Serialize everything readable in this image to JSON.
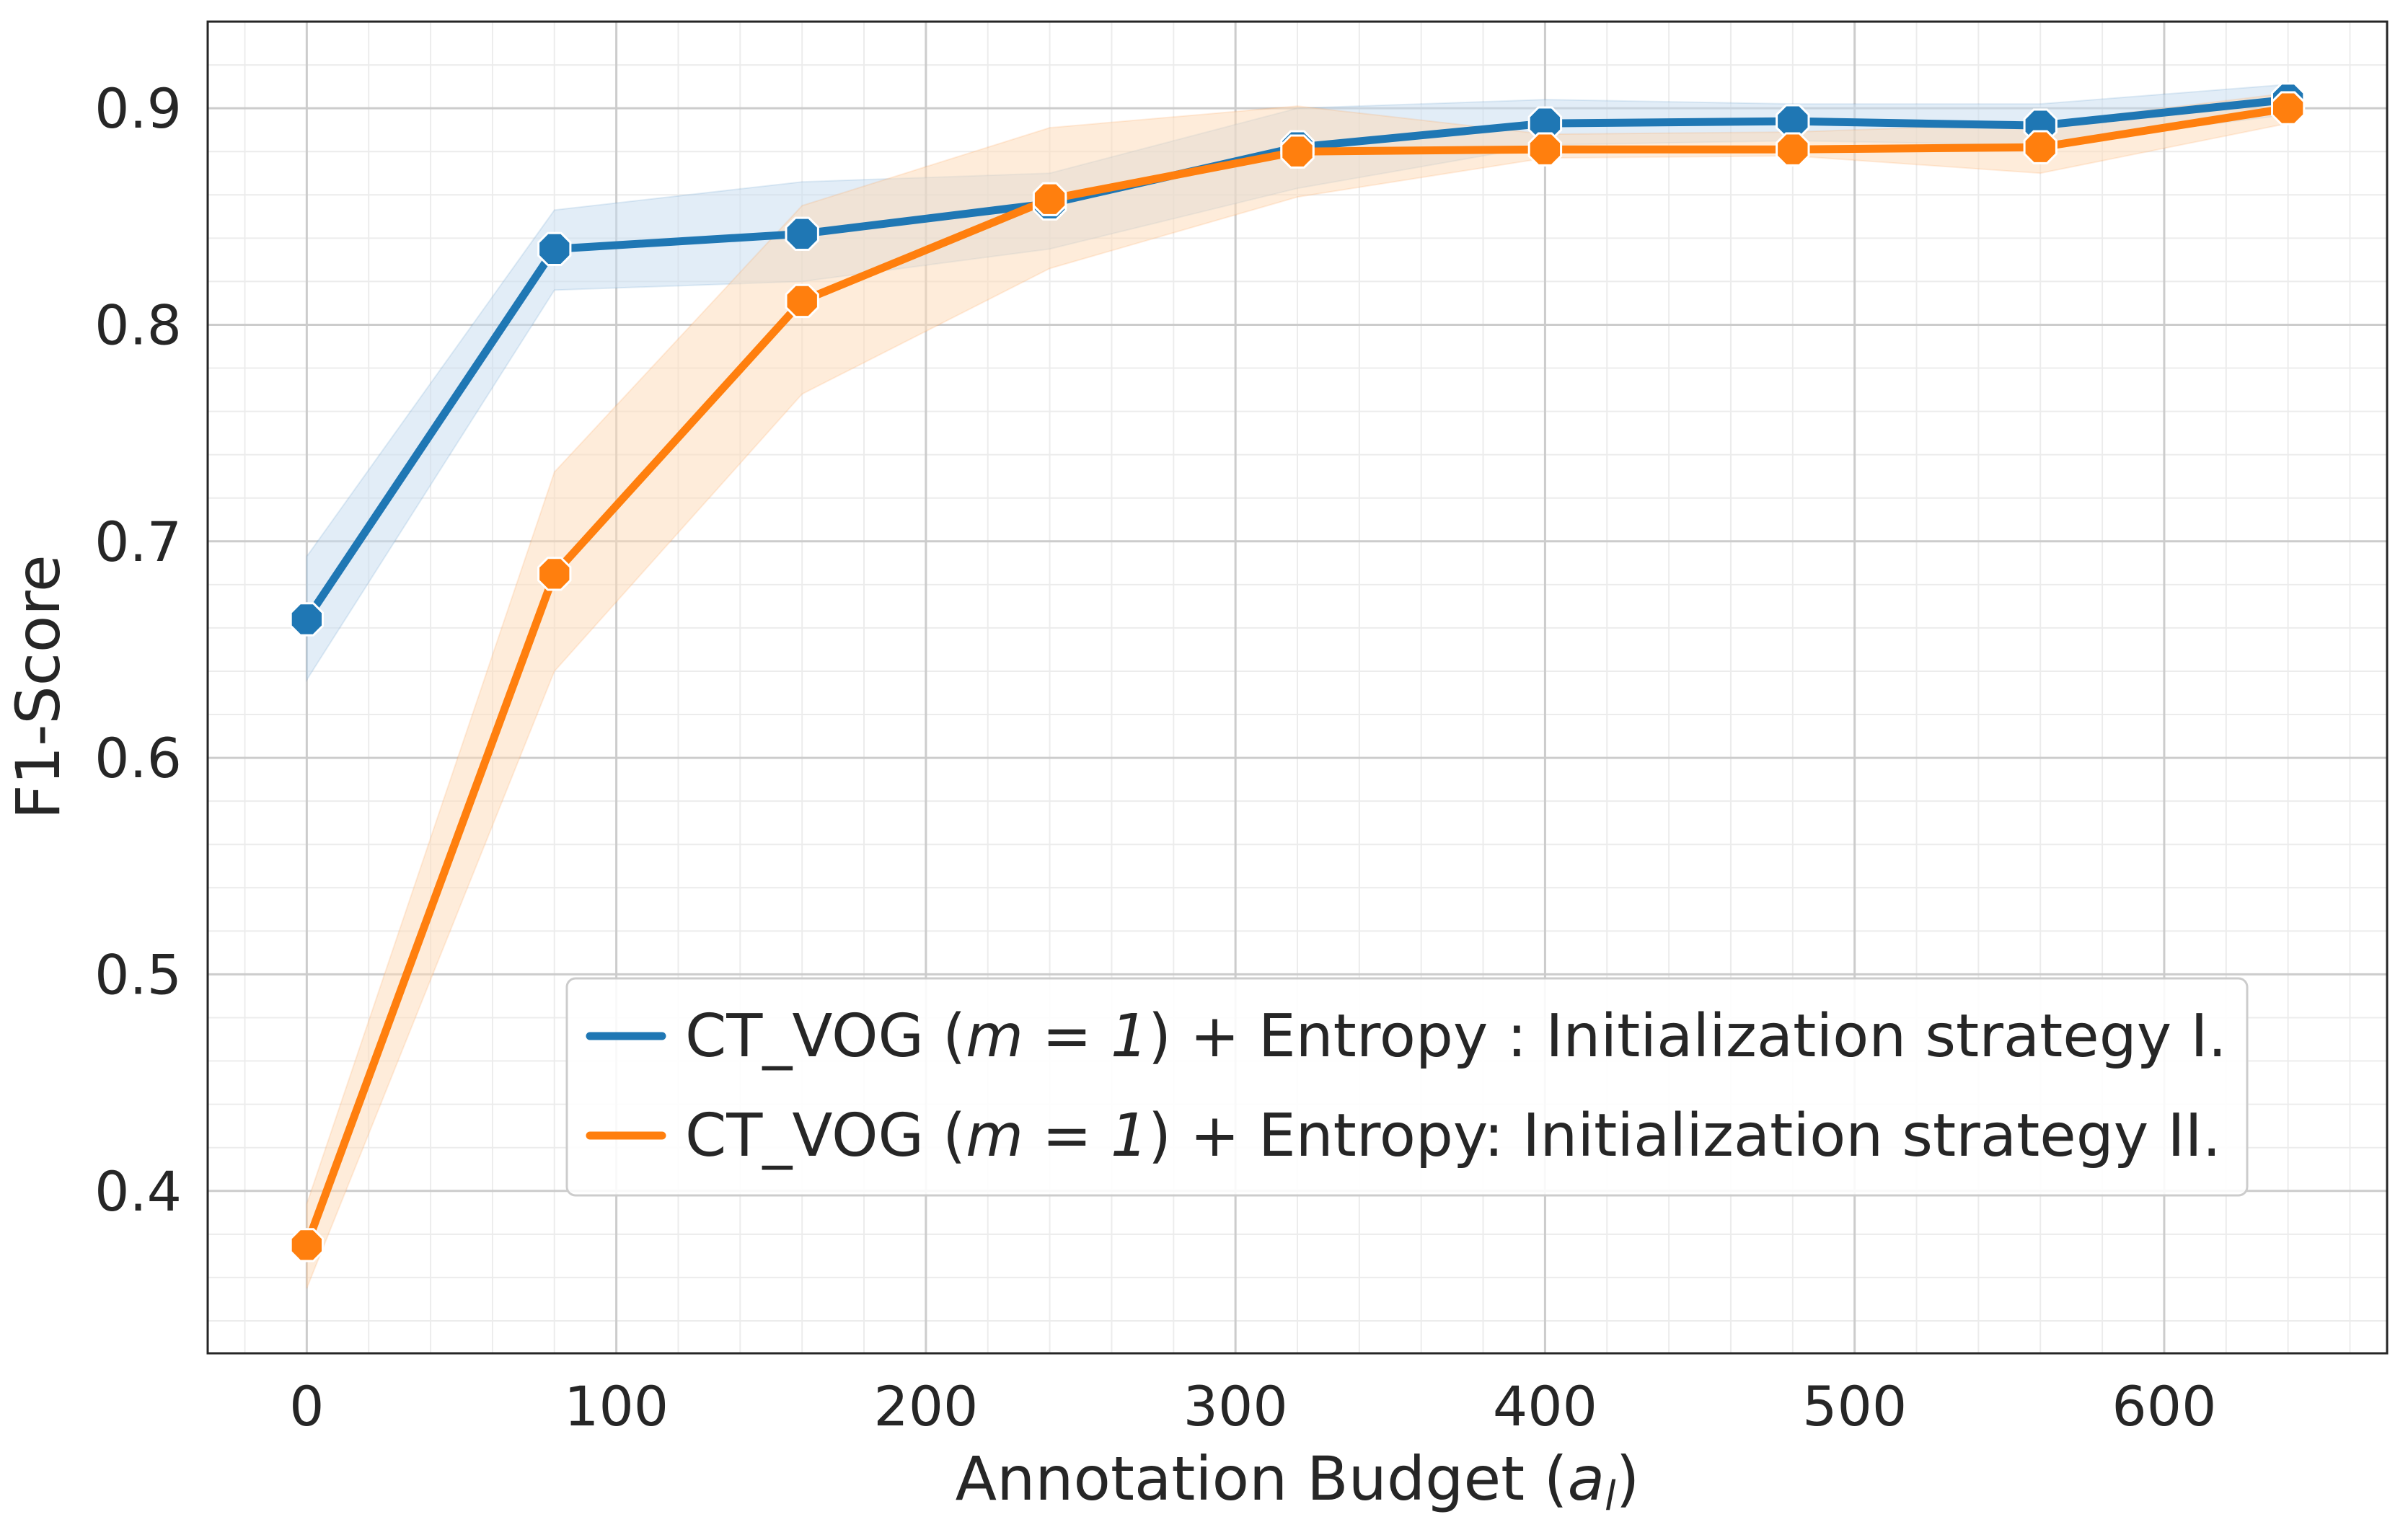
{
  "chart_data": {
    "type": "line",
    "title": "",
    "xlabel": "Annotation Budget (",
    "xlabel_math": "a",
    "xlabel_sub": "l",
    "xlabel_close": ")",
    "ylabel": "F1-Score",
    "xlim": [
      -32,
      672
    ],
    "ylim": [
      0.325,
      0.94
    ],
    "xticks": [
      0,
      100,
      200,
      300,
      400,
      500,
      600
    ],
    "xtick_labels": [
      "0",
      "100",
      "200",
      "300",
      "400",
      "500",
      "600"
    ],
    "yticks": [
      0.4,
      0.5,
      0.6,
      0.7,
      0.8,
      0.9
    ],
    "ytick_labels": [
      "0.4",
      "0.5",
      "0.6",
      "0.7",
      "0.8",
      "0.9"
    ],
    "grid": true,
    "minor_grid": true,
    "legend_position": "lower-right",
    "x": [
      0,
      80,
      160,
      240,
      320,
      400,
      480,
      560,
      640
    ],
    "series": [
      {
        "name": "CT_VOG (m = 1) + Entropy : Initialization strategy I.",
        "legend_prefix": "CT_VOG (",
        "legend_math": "m = 1",
        "legend_suffix": ") + Entropy : Initialization strategy I.",
        "color": "#1f77b4",
        "band_color": "#c6dbef",
        "values": [
          0.664,
          0.835,
          0.842,
          0.856,
          0.882,
          0.893,
          0.894,
          0.892,
          0.904
        ],
        "lower": [
          0.636,
          0.816,
          0.82,
          0.835,
          0.863,
          0.883,
          0.885,
          0.883,
          0.897
        ],
        "upper": [
          0.693,
          0.853,
          0.866,
          0.87,
          0.9,
          0.904,
          0.902,
          0.902,
          0.911
        ]
      },
      {
        "name": "CT_VOG (m = 1) + Entropy: Initialization strategy II.",
        "legend_prefix": "CT_VOG (",
        "legend_math": "m = 1",
        "legend_suffix": ") + Entropy: Initialization strategy II.",
        "color": "#ff7f0e",
        "band_color": "#fdd9b5",
        "values": [
          0.375,
          0.685,
          0.811,
          0.858,
          0.88,
          0.881,
          0.881,
          0.882,
          0.9
        ],
        "lower": [
          0.355,
          0.64,
          0.768,
          0.826,
          0.859,
          0.877,
          0.878,
          0.87,
          0.893
        ],
        "upper": [
          0.394,
          0.732,
          0.855,
          0.891,
          0.901,
          0.888,
          0.889,
          0.893,
          0.907
        ]
      }
    ]
  }
}
